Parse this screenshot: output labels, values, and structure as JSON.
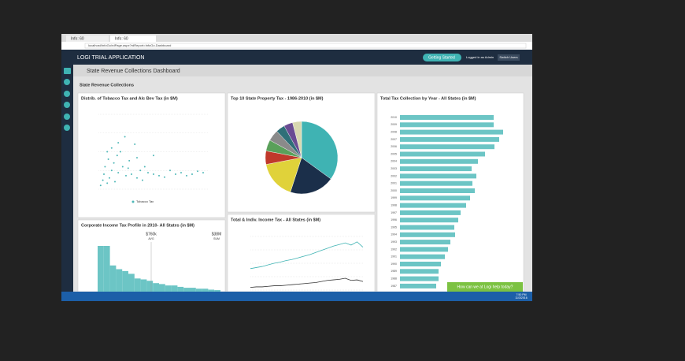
{
  "browser": {
    "tabs": [
      "Info: 60",
      "Info: 60"
    ],
    "address": "localhost/InfoGo/rdPage.aspx?rdReport=InfoGo.Dashboard"
  },
  "app": {
    "title": "LOGI TRIAL APPLICATION",
    "getting_started": "Getting Started",
    "logged_in": "Logged in as Admin",
    "switch_users": "Switch Users"
  },
  "dashboard": {
    "title": "State Revenue Collections Dashboard",
    "tab": "State Revenue Collections"
  },
  "panels": [
    {
      "title": "Distrib. of Tobacco Tax and Alc Bev Tax (in $M)",
      "type": "scatter",
      "legend": "Tobacco Tax",
      "color": "#4fb8b8",
      "xlim": [
        0,
        100
      ],
      "ylim": [
        0,
        100
      ],
      "x": [
        2,
        4,
        5,
        6,
        8,
        9,
        10,
        12,
        14,
        15,
        17,
        18,
        20,
        22,
        25,
        27,
        30,
        33,
        35,
        38,
        40,
        45,
        50,
        55,
        60,
        65,
        70,
        75,
        80,
        85,
        90,
        95,
        12,
        18,
        24,
        8,
        28,
        35,
        42,
        50
      ],
      "y": [
        5,
        12,
        20,
        30,
        8,
        40,
        15,
        25,
        35,
        10,
        45,
        22,
        50,
        30,
        18,
        28,
        20,
        60,
        15,
        25,
        12,
        22,
        20,
        18,
        16,
        25,
        20,
        22,
        18,
        20,
        24,
        22,
        55,
        62,
        70,
        50,
        38,
        42,
        30,
        45
      ]
    },
    {
      "title": "Top 10 State Property Tax - 1986-2010 (in $M)",
      "type": "pie",
      "values": [
        35,
        20,
        17,
        6,
        5,
        5,
        4,
        4,
        4
      ],
      "colors": [
        "#3fb3b3",
        "#1b2f4a",
        "#e0d23a",
        "#c0392b",
        "#5aa05a",
        "#8a8a8a",
        "#2f6f78",
        "#6a4c93",
        "#d8d8b0"
      ]
    },
    {
      "title": "Total Tax Collection by Year - All States (in $M)",
      "type": "bar",
      "color": "#6cc5c5",
      "xlim": [
        0,
        140
      ],
      "categories": [
        "2010",
        "2009",
        "2008",
        "2007",
        "2006",
        "2005",
        "2004",
        "2003",
        "2002",
        "2001",
        "2000",
        "1999",
        "1998",
        "1997",
        "1996",
        "1995",
        "1994",
        "1993",
        "1992",
        "1991",
        "1990",
        "1989",
        "1988",
        "1987"
      ],
      "values": [
        119,
        119,
        131,
        126,
        120,
        108,
        99,
        91,
        97,
        92,
        95,
        89,
        84,
        77,
        74,
        69,
        70,
        64,
        61,
        57,
        52,
        49,
        49,
        46
      ]
    },
    {
      "title": "Corporate Income Tax Profile in 2010- All States (in $M)",
      "type": "step",
      "color": "#6cc5c5",
      "ylim": [
        0,
        100
      ],
      "annotations": [
        "$760k",
        "AVG",
        "$38M",
        "SUM"
      ],
      "values": [
        100,
        100,
        58,
        50,
        46,
        40,
        30,
        28,
        25,
        20,
        18,
        15,
        15,
        12,
        10,
        10,
        8,
        8,
        6,
        5
      ]
    },
    {
      "title": "Total & Indiv. Income Tax - All States (in $M)",
      "type": "line",
      "ylim": [
        0,
        100
      ],
      "series": [
        {
          "color": "#3fb3b3",
          "values": [
            40,
            42,
            44,
            47,
            50,
            52,
            55,
            57,
            60,
            63,
            66,
            70,
            74,
            78,
            82,
            85,
            88,
            84,
            90,
            80
          ]
        },
        {
          "color": "#333333",
          "values": [
            5,
            6,
            6,
            7,
            8,
            8,
            9,
            10,
            11,
            12,
            13,
            14,
            16,
            18,
            19,
            20,
            22,
            18,
            19,
            16
          ]
        }
      ]
    }
  ],
  "chat": "How can we at Logi help today?",
  "taskbar": {
    "time": "7:50 PM",
    "date": "11/3/2016"
  }
}
